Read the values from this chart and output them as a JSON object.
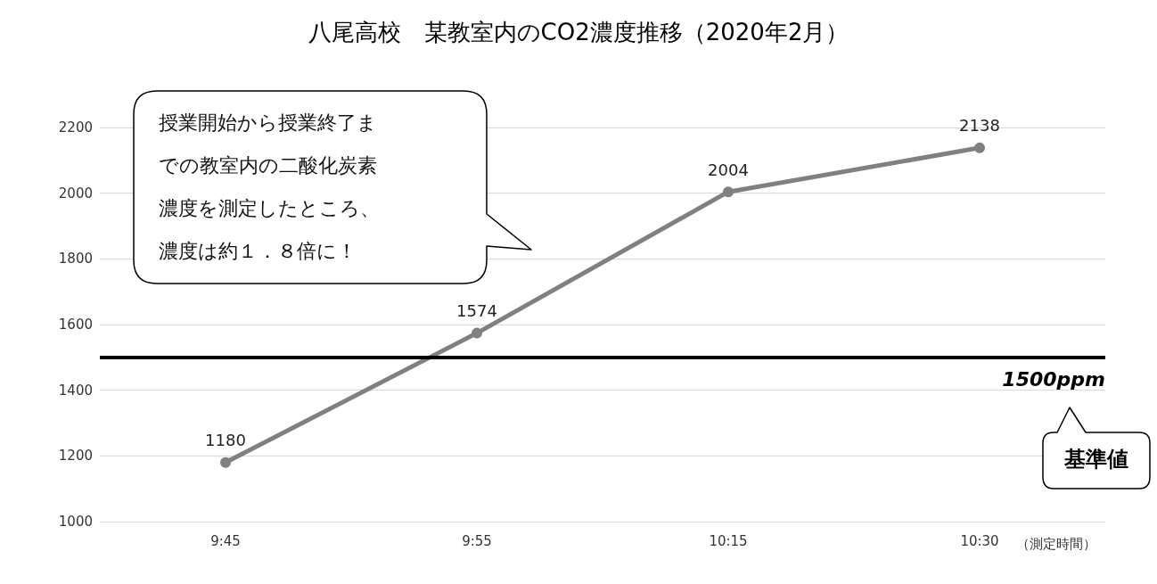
{
  "chart_data": {
    "type": "line",
    "title": "八尾高校　某教室内のCO2濃度推移（2020年2月）",
    "xlabel": "（測定時間）",
    "categories": [
      "9:45",
      "9:55",
      "10:15",
      "10:30"
    ],
    "series": [
      {
        "color": "#808080",
        "values": [
          1180,
          1574,
          2004,
          2138
        ]
      }
    ],
    "data_labels": true,
    "marker": "circle",
    "line_style": "solid",
    "ylim": [
      1000,
      2200
    ],
    "yticks": [
      1000,
      1200,
      1400,
      1600,
      1800,
      2000,
      2200
    ],
    "grid": "y",
    "ref_lines": [
      {
        "axis": "y",
        "value": 1500,
        "label": "1500ppm",
        "color": "#000000"
      }
    ],
    "annotations": [
      "授業開始から授業終了までの教室内の二酸化炭素濃度を測定したところ、濃度は約１．８倍に！",
      "基準値"
    ]
  }
}
